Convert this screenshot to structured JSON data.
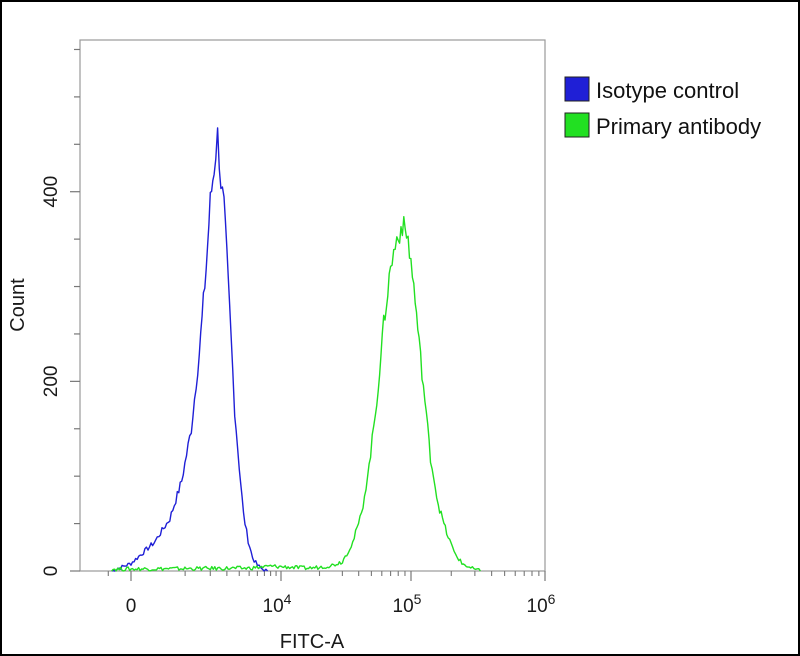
{
  "chart_data": {
    "type": "line",
    "xlabel": "FITC-A",
    "ylabel": "Count",
    "x_scale": "biexponential",
    "xlim": [
      -1000,
      1000000
    ],
    "ylim": [
      0,
      560
    ],
    "yticks": [
      {
        "value": 0,
        "label": "0"
      },
      {
        "value": 200,
        "label": "200"
      },
      {
        "value": 400,
        "label": "400"
      }
    ],
    "xticks": [
      {
        "value": 0,
        "base": "0",
        "exp": ""
      },
      {
        "value": 10000,
        "base": "10",
        "exp": "4"
      },
      {
        "value": 100000,
        "base": "10",
        "exp": "5"
      },
      {
        "value": 1000000,
        "base": "10",
        "exp": "6"
      }
    ],
    "grid": false,
    "legend_position": "right",
    "series": [
      {
        "name": "Isotype control",
        "color": "#1f1fd6",
        "x": [
          -400,
          0,
          300,
          600,
          900,
          1200,
          1500,
          1800,
          2000,
          2200,
          2400,
          2600,
          2800,
          3000,
          3300,
          3600,
          4000,
          4400,
          4900,
          5400,
          6000,
          6700,
          7500
        ],
        "y": [
          0,
          8,
          30,
          55,
          95,
          150,
          230,
          320,
          390,
          425,
          460,
          410,
          385,
          330,
          250,
          170,
          110,
          60,
          32,
          14,
          6,
          2,
          0
        ]
      },
      {
        "name": "Primary antibody",
        "color": "#22e022",
        "x": [
          -400,
          5000,
          8000,
          12000,
          16000,
          20000,
          25000,
          30000,
          36000,
          42000,
          48000,
          55000,
          62000,
          70000,
          78000,
          86000,
          95000,
          105000,
          115000,
          127000,
          140000,
          160000,
          185000,
          210000,
          240000,
          280000,
          330000
        ],
        "y": [
          2,
          3,
          5,
          4,
          3,
          4,
          6,
          10,
          30,
          60,
          110,
          180,
          260,
          320,
          350,
          365,
          350,
          300,
          240,
          180,
          120,
          70,
          40,
          20,
          8,
          3,
          0
        ]
      }
    ]
  }
}
